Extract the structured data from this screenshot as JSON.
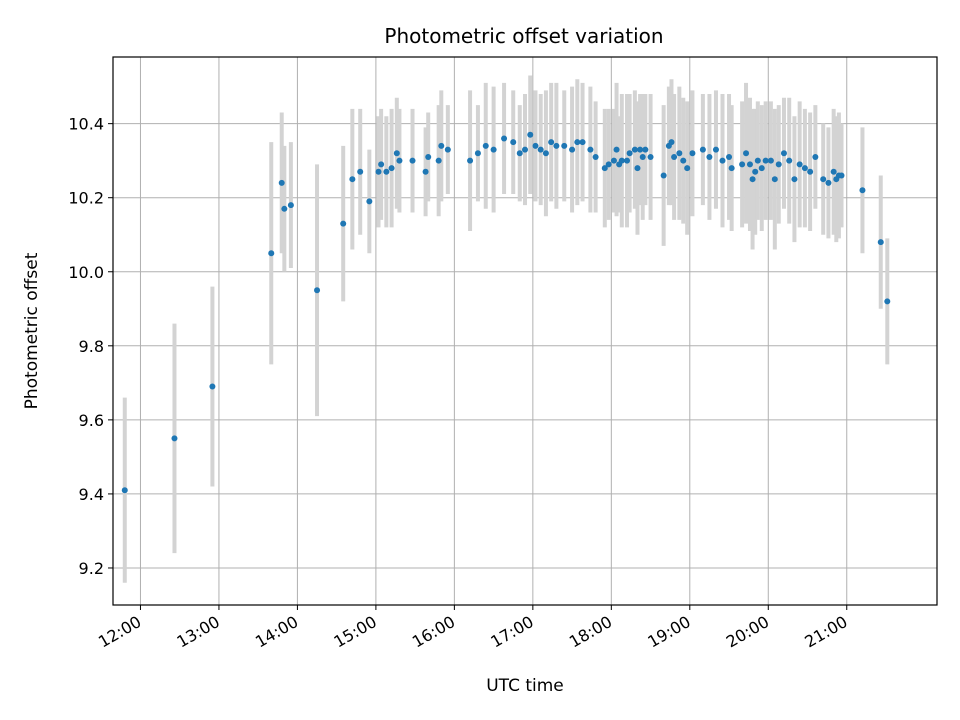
{
  "chart_data": {
    "type": "scatter",
    "title": "Photometric offset variation",
    "xlabel": "UTC time",
    "ylabel": "Photometric offset",
    "x_ticks": [
      "12:00",
      "13:00",
      "14:00",
      "15:00",
      "16:00",
      "17:00",
      "18:00",
      "19:00",
      "20:00",
      "21:00"
    ],
    "y_ticks": [
      "9.2",
      "9.4",
      "9.6",
      "9.8",
      "10.0",
      "10.2",
      "10.4"
    ],
    "xlim": [
      "11:39",
      "22:09"
    ],
    "ylim": [
      9.1,
      10.58
    ],
    "grid": true,
    "error_bar_color": "#d3d3d3",
    "marker_color": "#1f77b4",
    "series": [
      {
        "x": [
          "11:48",
          "12:26",
          "12:55",
          "13:40",
          "13:48",
          "13:50",
          "13:55",
          "14:15",
          "14:35",
          "14:42",
          "14:48",
          "14:55",
          "15:02",
          "15:04",
          "15:08",
          "15:12",
          "15:16",
          "15:18",
          "15:28",
          "15:38",
          "15:40",
          "15:48",
          "15:50",
          "15:55",
          "16:12",
          "16:18",
          "16:24",
          "16:30",
          "16:38",
          "16:45",
          "16:50",
          "16:54",
          "16:58",
          "17:02",
          "17:06",
          "17:10",
          "17:14",
          "17:18",
          "17:24",
          "17:30",
          "17:34",
          "17:38",
          "17:44",
          "17:48",
          "17:55",
          "17:58",
          "18:02",
          "18:04",
          "18:06",
          "18:08",
          "18:12",
          "18:14",
          "18:18",
          "18:20",
          "18:22",
          "18:24",
          "18:26",
          "18:30",
          "18:40",
          "18:44",
          "18:46",
          "18:48",
          "18:52",
          "18:55",
          "18:58",
          "19:02",
          "19:10",
          "19:15",
          "19:20",
          "19:25",
          "19:30",
          "19:32",
          "19:40",
          "19:43",
          "19:46",
          "19:48",
          "19:50",
          "19:52",
          "19:55",
          "19:58",
          "20:02",
          "20:05",
          "20:08",
          "20:12",
          "20:16",
          "20:20",
          "20:24",
          "20:28",
          "20:32",
          "20:36",
          "20:42",
          "20:46",
          "20:50",
          "20:52",
          "20:54",
          "20:56",
          "21:12",
          "21:26",
          "21:31"
        ],
        "y": [
          9.41,
          9.55,
          9.69,
          10.05,
          10.24,
          10.17,
          10.18,
          9.95,
          10.13,
          10.25,
          10.27,
          10.19,
          10.27,
          10.29,
          10.27,
          10.28,
          10.32,
          10.3,
          10.3,
          10.27,
          10.31,
          10.3,
          10.34,
          10.33,
          10.3,
          10.32,
          10.34,
          10.33,
          10.36,
          10.35,
          10.32,
          10.33,
          10.37,
          10.34,
          10.33,
          10.32,
          10.35,
          10.34,
          10.34,
          10.33,
          10.35,
          10.35,
          10.33,
          10.31,
          10.28,
          10.29,
          10.3,
          10.33,
          10.29,
          10.3,
          10.3,
          10.32,
          10.33,
          10.28,
          10.33,
          10.31,
          10.33,
          10.31,
          10.26,
          10.34,
          10.35,
          10.31,
          10.32,
          10.3,
          10.28,
          10.32,
          10.33,
          10.31,
          10.33,
          10.3,
          10.31,
          10.28,
          10.29,
          10.32,
          10.29,
          10.25,
          10.27,
          10.3,
          10.28,
          10.3,
          10.3,
          10.25,
          10.29,
          10.32,
          10.3,
          10.25,
          10.29,
          10.28,
          10.27,
          10.31,
          10.25,
          10.24,
          10.27,
          10.25,
          10.26,
          10.26,
          10.22,
          10.08,
          9.92
        ],
        "yerr": [
          0.25,
          0.31,
          0.27,
          0.3,
          0.19,
          0.17,
          0.17,
          0.34,
          0.21,
          0.19,
          0.17,
          0.14,
          0.15,
          0.15,
          0.15,
          0.16,
          0.15,
          0.14,
          0.14,
          0.12,
          0.12,
          0.15,
          0.15,
          0.12,
          0.19,
          0.13,
          0.17,
          0.17,
          0.15,
          0.14,
          0.13,
          0.15,
          0.16,
          0.15,
          0.15,
          0.17,
          0.16,
          0.17,
          0.15,
          0.17,
          0.17,
          0.16,
          0.17,
          0.15,
          0.16,
          0.15,
          0.14,
          0.18,
          0.13,
          0.18,
          0.18,
          0.16,
          0.16,
          0.18,
          0.15,
          0.17,
          0.15,
          0.17,
          0.19,
          0.16,
          0.17,
          0.17,
          0.18,
          0.17,
          0.18,
          0.17,
          0.15,
          0.17,
          0.16,
          0.18,
          0.17,
          0.17,
          0.17,
          0.19,
          0.18,
          0.19,
          0.17,
          0.16,
          0.17,
          0.16,
          0.16,
          0.19,
          0.16,
          0.15,
          0.17,
          0.17,
          0.17,
          0.16,
          0.16,
          0.14,
          0.15,
          0.15,
          0.17,
          0.17,
          0.17,
          0.14,
          0.17,
          0.18,
          0.17
        ]
      }
    ]
  }
}
